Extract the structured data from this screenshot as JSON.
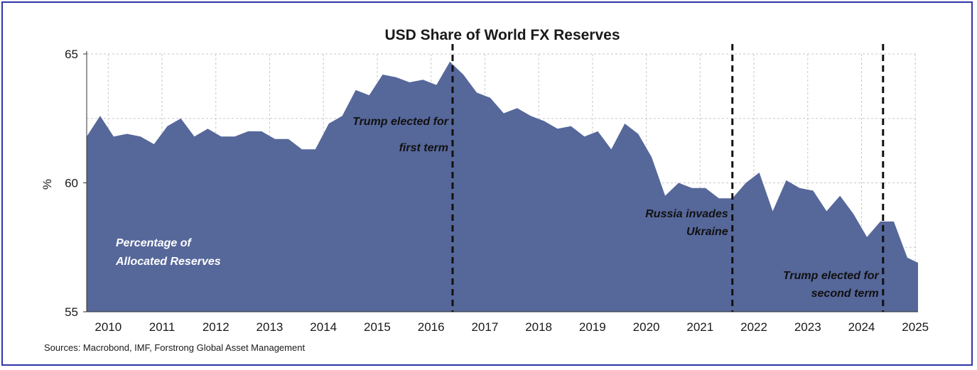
{
  "chart_data": {
    "type": "area",
    "title": "USD Share of World FX Reserves",
    "ylabel": "%",
    "xlabel": "",
    "ylim": [
      55,
      65
    ],
    "xlim": [
      2009.6,
      2025.05
    ],
    "yticks": [
      55,
      60,
      65
    ],
    "xticks": [
      2010,
      2011,
      2012,
      2013,
      2014,
      2015,
      2016,
      2017,
      2018,
      2019,
      2020,
      2021,
      2022,
      2023,
      2024,
      2025
    ],
    "grid": true,
    "color": "#56679a",
    "series": [
      {
        "name": "Percentage of Allocated Reserves",
        "x": [
          2009.6,
          2009.85,
          2010.1,
          2010.35,
          2010.6,
          2010.85,
          2011.1,
          2011.35,
          2011.6,
          2011.85,
          2012.1,
          2012.35,
          2012.6,
          2012.85,
          2013.1,
          2013.35,
          2013.6,
          2013.85,
          2014.1,
          2014.35,
          2014.6,
          2014.85,
          2015.1,
          2015.35,
          2015.6,
          2015.85,
          2016.1,
          2016.35,
          2016.6,
          2016.85,
          2017.1,
          2017.35,
          2017.6,
          2017.85,
          2018.1,
          2018.35,
          2018.6,
          2018.85,
          2019.1,
          2019.35,
          2019.6,
          2019.85,
          2020.1,
          2020.35,
          2020.6,
          2020.85,
          2021.1,
          2021.35,
          2021.6,
          2021.85,
          2022.1,
          2022.35,
          2022.6,
          2022.85,
          2023.1,
          2023.35,
          2023.6,
          2023.85,
          2024.1,
          2024.35,
          2024.6,
          2024.85,
          2025.05
        ],
        "values": [
          61.8,
          62.6,
          61.8,
          61.9,
          61.8,
          61.5,
          62.2,
          62.5,
          61.8,
          62.1,
          61.8,
          61.8,
          62.0,
          62.0,
          61.7,
          61.7,
          61.3,
          61.3,
          62.3,
          62.6,
          63.6,
          63.4,
          64.2,
          64.1,
          63.9,
          64.0,
          63.8,
          64.7,
          64.2,
          63.5,
          63.3,
          62.7,
          62.9,
          62.6,
          62.4,
          62.1,
          62.2,
          61.8,
          62.0,
          61.3,
          62.3,
          61.9,
          61.0,
          59.5,
          60.0,
          59.8,
          59.8,
          59.4,
          59.4,
          60.0,
          60.4,
          58.9,
          60.1,
          59.8,
          59.7,
          58.9,
          59.5,
          58.8,
          57.9,
          58.5,
          58.5,
          57.1,
          56.9
        ]
      }
    ],
    "events": [
      {
        "x": 2016.4,
        "lines": [
          "Trump elected for",
          "first term"
        ]
      },
      {
        "x": 2021.6,
        "lines": [
          "Russia invades",
          "Ukraine"
        ]
      },
      {
        "x": 2024.4,
        "lines": [
          "Trump elected for",
          "second term"
        ]
      }
    ],
    "series_label_lines": [
      "Percentage of",
      "Allocated Reserves"
    ]
  },
  "footer": {
    "source": "Sources: Macrobond, IMF, Forstrong Global Asset Management"
  }
}
